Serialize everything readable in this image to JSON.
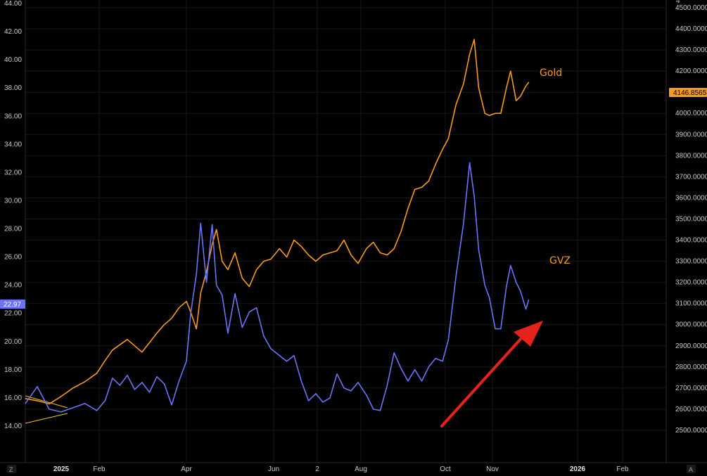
{
  "chart_data": {
    "type": "line",
    "title": "",
    "x_ticks": [
      "2025",
      "Feb",
      "Apr",
      "Jun",
      "2",
      "Aug",
      "Oct",
      "Nov",
      "2026",
      "Feb"
    ],
    "y_left": {
      "range": [
        12.5,
        44.0
      ],
      "ticks": [
        "14.00",
        "16.00",
        "18.00",
        "20.00",
        "22.00",
        "24.00",
        "26.00",
        "28.00",
        "30.00",
        "32.00",
        "34.00",
        "36.00",
        "38.00",
        "40.00",
        "42.00",
        "44.00"
      ],
      "current_label": "22.97"
    },
    "y_right": {
      "range": [
        2420,
        4520
      ],
      "ticks": [
        "2500.0000",
        "2600.0000",
        "2700.0000",
        "2800.0000",
        "2900.0000",
        "3000.0000",
        "3100.0000",
        "3200.0000",
        "3300.0000",
        "3400.0000",
        "3500.0000",
        "3600.0000",
        "3700.0000",
        "3800.0000",
        "3900.0000",
        "4000.0000",
        "4100.0000",
        "4200.0000",
        "4300.0000",
        "4400.0000",
        "4500.0000"
      ],
      "current_label": "4146.8565"
    },
    "series": [
      {
        "name": "Gold",
        "axis": "right",
        "color": "#f79a1e",
        "points": [
          [
            "2025-01-01",
            2650
          ],
          [
            "2025-01-06",
            2640
          ],
          [
            "2025-01-11",
            2625
          ],
          [
            "2025-01-16",
            2660
          ],
          [
            "2025-01-21",
            2700
          ],
          [
            "2025-01-26",
            2730
          ],
          [
            "2025-01-31",
            2770
          ],
          [
            "2025-02-05",
            2830
          ],
          [
            "2025-02-10",
            2880
          ],
          [
            "2025-02-15",
            2905
          ],
          [
            "2025-02-20",
            2930
          ],
          [
            "2025-02-25",
            2900
          ],
          [
            "2025-03-02",
            2870
          ],
          [
            "2025-03-07",
            2915
          ],
          [
            "2025-03-12",
            2960
          ],
          [
            "2025-03-17",
            3000
          ],
          [
            "2025-03-22",
            3030
          ],
          [
            "2025-03-27",
            3080
          ],
          [
            "2025-04-01",
            3110
          ],
          [
            "2025-04-04",
            3060
          ],
          [
            "2025-04-08",
            2980
          ],
          [
            "2025-04-11",
            3150
          ],
          [
            "2025-04-15",
            3250
          ],
          [
            "2025-04-19",
            3380
          ],
          [
            "2025-04-22",
            3450
          ],
          [
            "2025-04-26",
            3300
          ],
          [
            "2025-04-30",
            3260
          ],
          [
            "2025-05-05",
            3340
          ],
          [
            "2025-05-10",
            3220
          ],
          [
            "2025-05-15",
            3180
          ],
          [
            "2025-05-20",
            3260
          ],
          [
            "2025-05-25",
            3300
          ],
          [
            "2025-05-30",
            3310
          ],
          [
            "2025-06-05",
            3360
          ],
          [
            "2025-06-10",
            3320
          ],
          [
            "2025-06-15",
            3400
          ],
          [
            "2025-06-20",
            3370
          ],
          [
            "2025-06-25",
            3330
          ],
          [
            "2025-06-30",
            3300
          ],
          [
            "2025-07-05",
            3330
          ],
          [
            "2025-07-10",
            3340
          ],
          [
            "2025-07-15",
            3350
          ],
          [
            "2025-07-20",
            3400
          ],
          [
            "2025-07-25",
            3330
          ],
          [
            "2025-07-30",
            3290
          ],
          [
            "2025-08-05",
            3360
          ],
          [
            "2025-08-10",
            3390
          ],
          [
            "2025-08-15",
            3340
          ],
          [
            "2025-08-20",
            3330
          ],
          [
            "2025-08-25",
            3360
          ],
          [
            "2025-08-30",
            3440
          ],
          [
            "2025-09-04",
            3550
          ],
          [
            "2025-09-09",
            3640
          ],
          [
            "2025-09-14",
            3650
          ],
          [
            "2025-09-19",
            3680
          ],
          [
            "2025-09-24",
            3760
          ],
          [
            "2025-09-29",
            3830
          ],
          [
            "2025-10-03",
            3880
          ],
          [
            "2025-10-08",
            4040
          ],
          [
            "2025-10-13",
            4140
          ],
          [
            "2025-10-17",
            4280
          ],
          [
            "2025-10-20",
            4350
          ],
          [
            "2025-10-23",
            4120
          ],
          [
            "2025-10-27",
            4000
          ],
          [
            "2025-10-30",
            3990
          ],
          [
            "2025-11-03",
            4000
          ],
          [
            "2025-11-07",
            4000
          ],
          [
            "2025-11-11",
            4120
          ],
          [
            "2025-11-14",
            4200
          ],
          [
            "2025-11-18",
            4060
          ],
          [
            "2025-11-21",
            4080
          ],
          [
            "2025-11-25",
            4130
          ],
          [
            "2025-11-27",
            4147
          ]
        ]
      },
      {
        "name": "GVZ",
        "axis": "left",
        "color": "#6a74f5",
        "points": [
          [
            "2025-01-01",
            15.6
          ],
          [
            "2025-01-06",
            16.8
          ],
          [
            "2025-01-11",
            15.2
          ],
          [
            "2025-01-16",
            15.0
          ],
          [
            "2025-01-21",
            15.3
          ],
          [
            "2025-01-26",
            15.6
          ],
          [
            "2025-01-31",
            15.1
          ],
          [
            "2025-02-05",
            15.8
          ],
          [
            "2025-02-10",
            17.4
          ],
          [
            "2025-02-15",
            16.9
          ],
          [
            "2025-02-20",
            17.6
          ],
          [
            "2025-02-25",
            16.6
          ],
          [
            "2025-03-02",
            17.1
          ],
          [
            "2025-03-07",
            16.4
          ],
          [
            "2025-03-12",
            17.5
          ],
          [
            "2025-03-17",
            17.0
          ],
          [
            "2025-03-22",
            15.5
          ],
          [
            "2025-03-27",
            17.2
          ],
          [
            "2025-04-01",
            18.6
          ],
          [
            "2025-04-04",
            22.0
          ],
          [
            "2025-04-08",
            24.8
          ],
          [
            "2025-04-11",
            28.4
          ],
          [
            "2025-04-15",
            24.2
          ],
          [
            "2025-04-19",
            28.3
          ],
          [
            "2025-04-22",
            24.0
          ],
          [
            "2025-04-26",
            23.3
          ],
          [
            "2025-04-30",
            20.6
          ],
          [
            "2025-05-05",
            23.4
          ],
          [
            "2025-05-10",
            21.0
          ],
          [
            "2025-05-15",
            22.1
          ],
          [
            "2025-05-20",
            22.4
          ],
          [
            "2025-05-25",
            20.4
          ],
          [
            "2025-05-30",
            19.5
          ],
          [
            "2025-06-05",
            19.0
          ],
          [
            "2025-06-10",
            18.6
          ],
          [
            "2025-06-15",
            19.0
          ],
          [
            "2025-06-20",
            17.2
          ],
          [
            "2025-06-25",
            15.8
          ],
          [
            "2025-06-30",
            16.3
          ],
          [
            "2025-07-05",
            15.7
          ],
          [
            "2025-07-10",
            16.0
          ],
          [
            "2025-07-15",
            17.7
          ],
          [
            "2025-07-20",
            16.7
          ],
          [
            "2025-07-25",
            16.5
          ],
          [
            "2025-07-30",
            17.1
          ],
          [
            "2025-08-05",
            16.2
          ],
          [
            "2025-08-10",
            15.2
          ],
          [
            "2025-08-15",
            15.1
          ],
          [
            "2025-08-20",
            16.9
          ],
          [
            "2025-08-25",
            19.2
          ],
          [
            "2025-08-30",
            18.1
          ],
          [
            "2025-09-04",
            17.2
          ],
          [
            "2025-09-09",
            18.0
          ],
          [
            "2025-09-14",
            17.2
          ],
          [
            "2025-09-19",
            18.2
          ],
          [
            "2025-09-24",
            18.8
          ],
          [
            "2025-09-29",
            18.6
          ],
          [
            "2025-10-03",
            20.1
          ],
          [
            "2025-10-08",
            24.6
          ],
          [
            "2025-10-13",
            28.4
          ],
          [
            "2025-10-17",
            32.7
          ],
          [
            "2025-10-20",
            30.3
          ],
          [
            "2025-10-23",
            26.5
          ],
          [
            "2025-10-27",
            24.0
          ],
          [
            "2025-10-30",
            23.1
          ],
          [
            "2025-11-03",
            20.9
          ],
          [
            "2025-11-07",
            20.9
          ],
          [
            "2025-11-11",
            23.9
          ],
          [
            "2025-11-14",
            25.4
          ],
          [
            "2025-11-18",
            24.2
          ],
          [
            "2025-11-21",
            23.6
          ],
          [
            "2025-11-25",
            22.3
          ],
          [
            "2025-11-27",
            22.97
          ]
        ]
      }
    ],
    "annotations": [
      {
        "text": "Gold",
        "color": "#f79a1e"
      },
      {
        "text": "GVZ",
        "color": "#f79a1e"
      }
    ],
    "arrow_color": "#e5221b",
    "grid": true,
    "corner_left": "Z",
    "corner_right": "A",
    "top_right_stub": "4"
  }
}
